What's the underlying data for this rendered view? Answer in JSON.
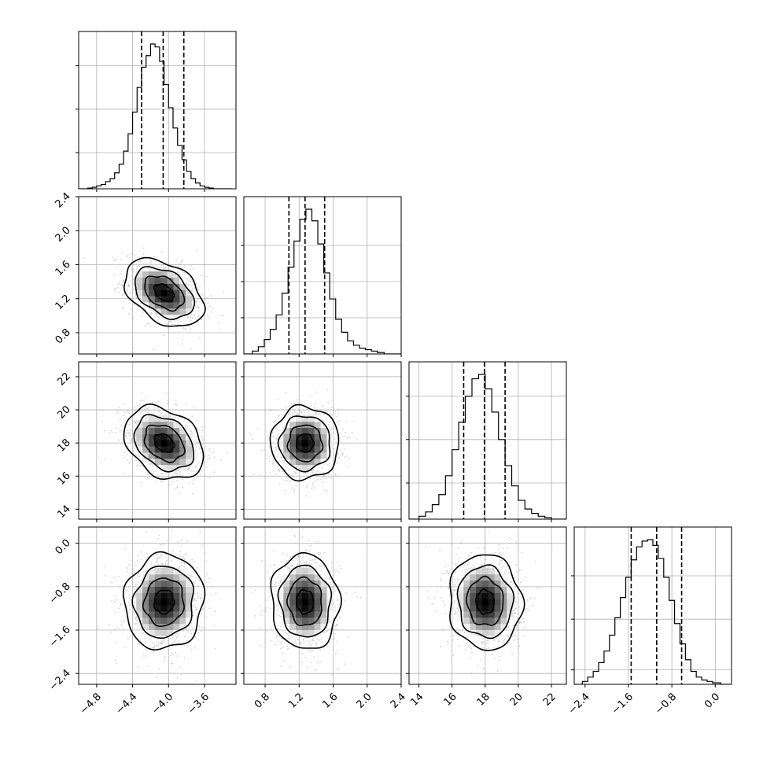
{
  "chart_data": {
    "type": "corner",
    "description_of_panels": "lower-triangle corner plot: 1-D histograms on diagonal, 2-D density contours below",
    "grid": true,
    "params": [
      {
        "range": [
          -5.0,
          -3.25
        ],
        "ticks": [
          -4.8,
          -4.4,
          -4.0,
          -3.6
        ],
        "tick_labels": [
          "−4.8",
          "−4.4",
          "−4.0",
          "−3.6"
        ],
        "hist_yticks": [
          0.25,
          0.55,
          0.85
        ],
        "quantiles": [
          -4.3,
          -4.06,
          -3.83
        ],
        "hist": {
          "edges": [
            -5.0,
            -4.9,
            -4.85,
            -4.8,
            -4.75,
            -4.7,
            -4.65,
            -4.6,
            -4.55,
            -4.5,
            -4.45,
            -4.4,
            -4.35,
            -4.3,
            -4.25,
            -4.2,
            -4.15,
            -4.1,
            -4.05,
            -4.0,
            -3.95,
            -3.9,
            -3.85,
            -3.8,
            -3.75,
            -3.7,
            -3.65,
            -3.6,
            -3.55,
            -3.5,
            -3.45,
            -3.4,
            -3.3
          ],
          "counts": [
            0.0,
            0.005,
            0.01,
            0.02,
            0.03,
            0.05,
            0.07,
            0.11,
            0.17,
            0.26,
            0.38,
            0.53,
            0.7,
            0.84,
            0.92,
            1.0,
            0.98,
            0.88,
            0.72,
            0.56,
            0.42,
            0.3,
            0.2,
            0.12,
            0.07,
            0.04,
            0.02,
            0.01,
            0.005,
            0.0,
            0.0,
            0.0
          ]
        }
      },
      {
        "range": [
          0.55,
          2.4
        ],
        "ticks": [
          0.8,
          1.2,
          1.6,
          2.0,
          2.4
        ],
        "tick_labels": [
          "0.8",
          "1.2",
          "1.6",
          "2.0",
          "2.4"
        ],
        "hist_yticks": [
          0.25,
          0.5,
          0.75
        ],
        "quantiles": [
          1.08,
          1.27,
          1.5
        ],
        "hist": {
          "edges": [
            0.55,
            0.65,
            0.72,
            0.79,
            0.86,
            0.93,
            1.0,
            1.07,
            1.14,
            1.21,
            1.28,
            1.35,
            1.42,
            1.49,
            1.56,
            1.63,
            1.7,
            1.77,
            1.84,
            1.91,
            1.98,
            2.05,
            2.12,
            2.2,
            2.4
          ],
          "counts": [
            0.0,
            0.02,
            0.05,
            0.1,
            0.17,
            0.27,
            0.42,
            0.6,
            0.78,
            0.93,
            1.0,
            0.92,
            0.76,
            0.56,
            0.38,
            0.24,
            0.15,
            0.09,
            0.06,
            0.04,
            0.03,
            0.02,
            0.01,
            0.0
          ]
        }
      },
      {
        "range": [
          13.4,
          22.9
        ],
        "ticks": [
          14,
          16,
          18,
          20,
          22
        ],
        "tick_labels": [
          "14",
          "16",
          "18",
          "20",
          "22"
        ],
        "hist_yticks": [
          0.25,
          0.55,
          0.85
        ],
        "quantiles": [
          16.7,
          17.95,
          19.2
        ],
        "hist": {
          "edges": [
            13.4,
            14.0,
            14.4,
            14.8,
            15.2,
            15.6,
            16.0,
            16.4,
            16.8,
            17.2,
            17.6,
            18.0,
            18.4,
            18.8,
            19.2,
            19.6,
            20.0,
            20.4,
            20.8,
            21.2,
            21.6,
            22.0,
            22.9
          ],
          "counts": [
            0.0,
            0.02,
            0.05,
            0.1,
            0.17,
            0.3,
            0.48,
            0.67,
            0.85,
            0.97,
            1.0,
            0.9,
            0.74,
            0.55,
            0.37,
            0.23,
            0.13,
            0.07,
            0.04,
            0.02,
            0.01,
            0.0
          ]
        }
      },
      {
        "range": [
          -2.6,
          0.3
        ],
        "ticks": [
          -2.4,
          -1.6,
          -0.8,
          0.0
        ],
        "tick_labels": [
          "−2.4",
          "−1.6",
          "−0.8",
          "0.0"
        ],
        "hist_yticks": [
          0.1,
          0.45,
          0.75
        ],
        "quantiles": [
          -1.55,
          -1.08,
          -0.62
        ],
        "hist": {
          "edges": [
            -2.6,
            -2.45,
            -2.35,
            -2.25,
            -2.15,
            -2.05,
            -1.95,
            -1.85,
            -1.75,
            -1.65,
            -1.55,
            -1.45,
            -1.35,
            -1.25,
            -1.15,
            -1.05,
            -0.95,
            -0.85,
            -0.75,
            -0.65,
            -0.55,
            -0.45,
            -0.35,
            -0.25,
            -0.15,
            -0.05,
            0.1,
            0.3
          ],
          "counts": [
            0.0,
            0.02,
            0.05,
            0.09,
            0.15,
            0.23,
            0.34,
            0.46,
            0.6,
            0.74,
            0.86,
            0.95,
            0.99,
            1.0,
            0.96,
            0.87,
            0.74,
            0.58,
            0.42,
            0.28,
            0.17,
            0.09,
            0.05,
            0.03,
            0.02,
            0.01,
            0.0
          ]
        }
      }
    ],
    "pairs": [
      {
        "x": 0,
        "y": 1,
        "mean": [
          -4.05,
          1.27
        ],
        "sigma": [
          0.22,
          0.2
        ],
        "rho": -0.4
      },
      {
        "x": 0,
        "y": 2,
        "mean": [
          -4.05,
          18.0
        ],
        "sigma": [
          0.22,
          1.1
        ],
        "rho": -0.3
      },
      {
        "x": 1,
        "y": 2,
        "mean": [
          1.27,
          18.0
        ],
        "sigma": [
          0.2,
          1.1
        ],
        "rho": 0.0
      },
      {
        "x": 0,
        "y": 3,
        "mean": [
          -4.05,
          -1.08
        ],
        "sigma": [
          0.22,
          0.44
        ],
        "rho": 0.05
      },
      {
        "x": 1,
        "y": 3,
        "mean": [
          1.27,
          -1.08
        ],
        "sigma": [
          0.2,
          0.44
        ],
        "rho": -0.05
      },
      {
        "x": 2,
        "y": 3,
        "mean": [
          18.0,
          -1.08
        ],
        "sigma": [
          1.1,
          0.44
        ],
        "rho": -0.05
      }
    ],
    "contour_levels_sigma": [
      0.5,
      1.0,
      1.5,
      2.0
    ],
    "colors": {
      "line": "#000000",
      "scatter": "#bfbfbf",
      "grid": "#b0b0b0"
    }
  }
}
